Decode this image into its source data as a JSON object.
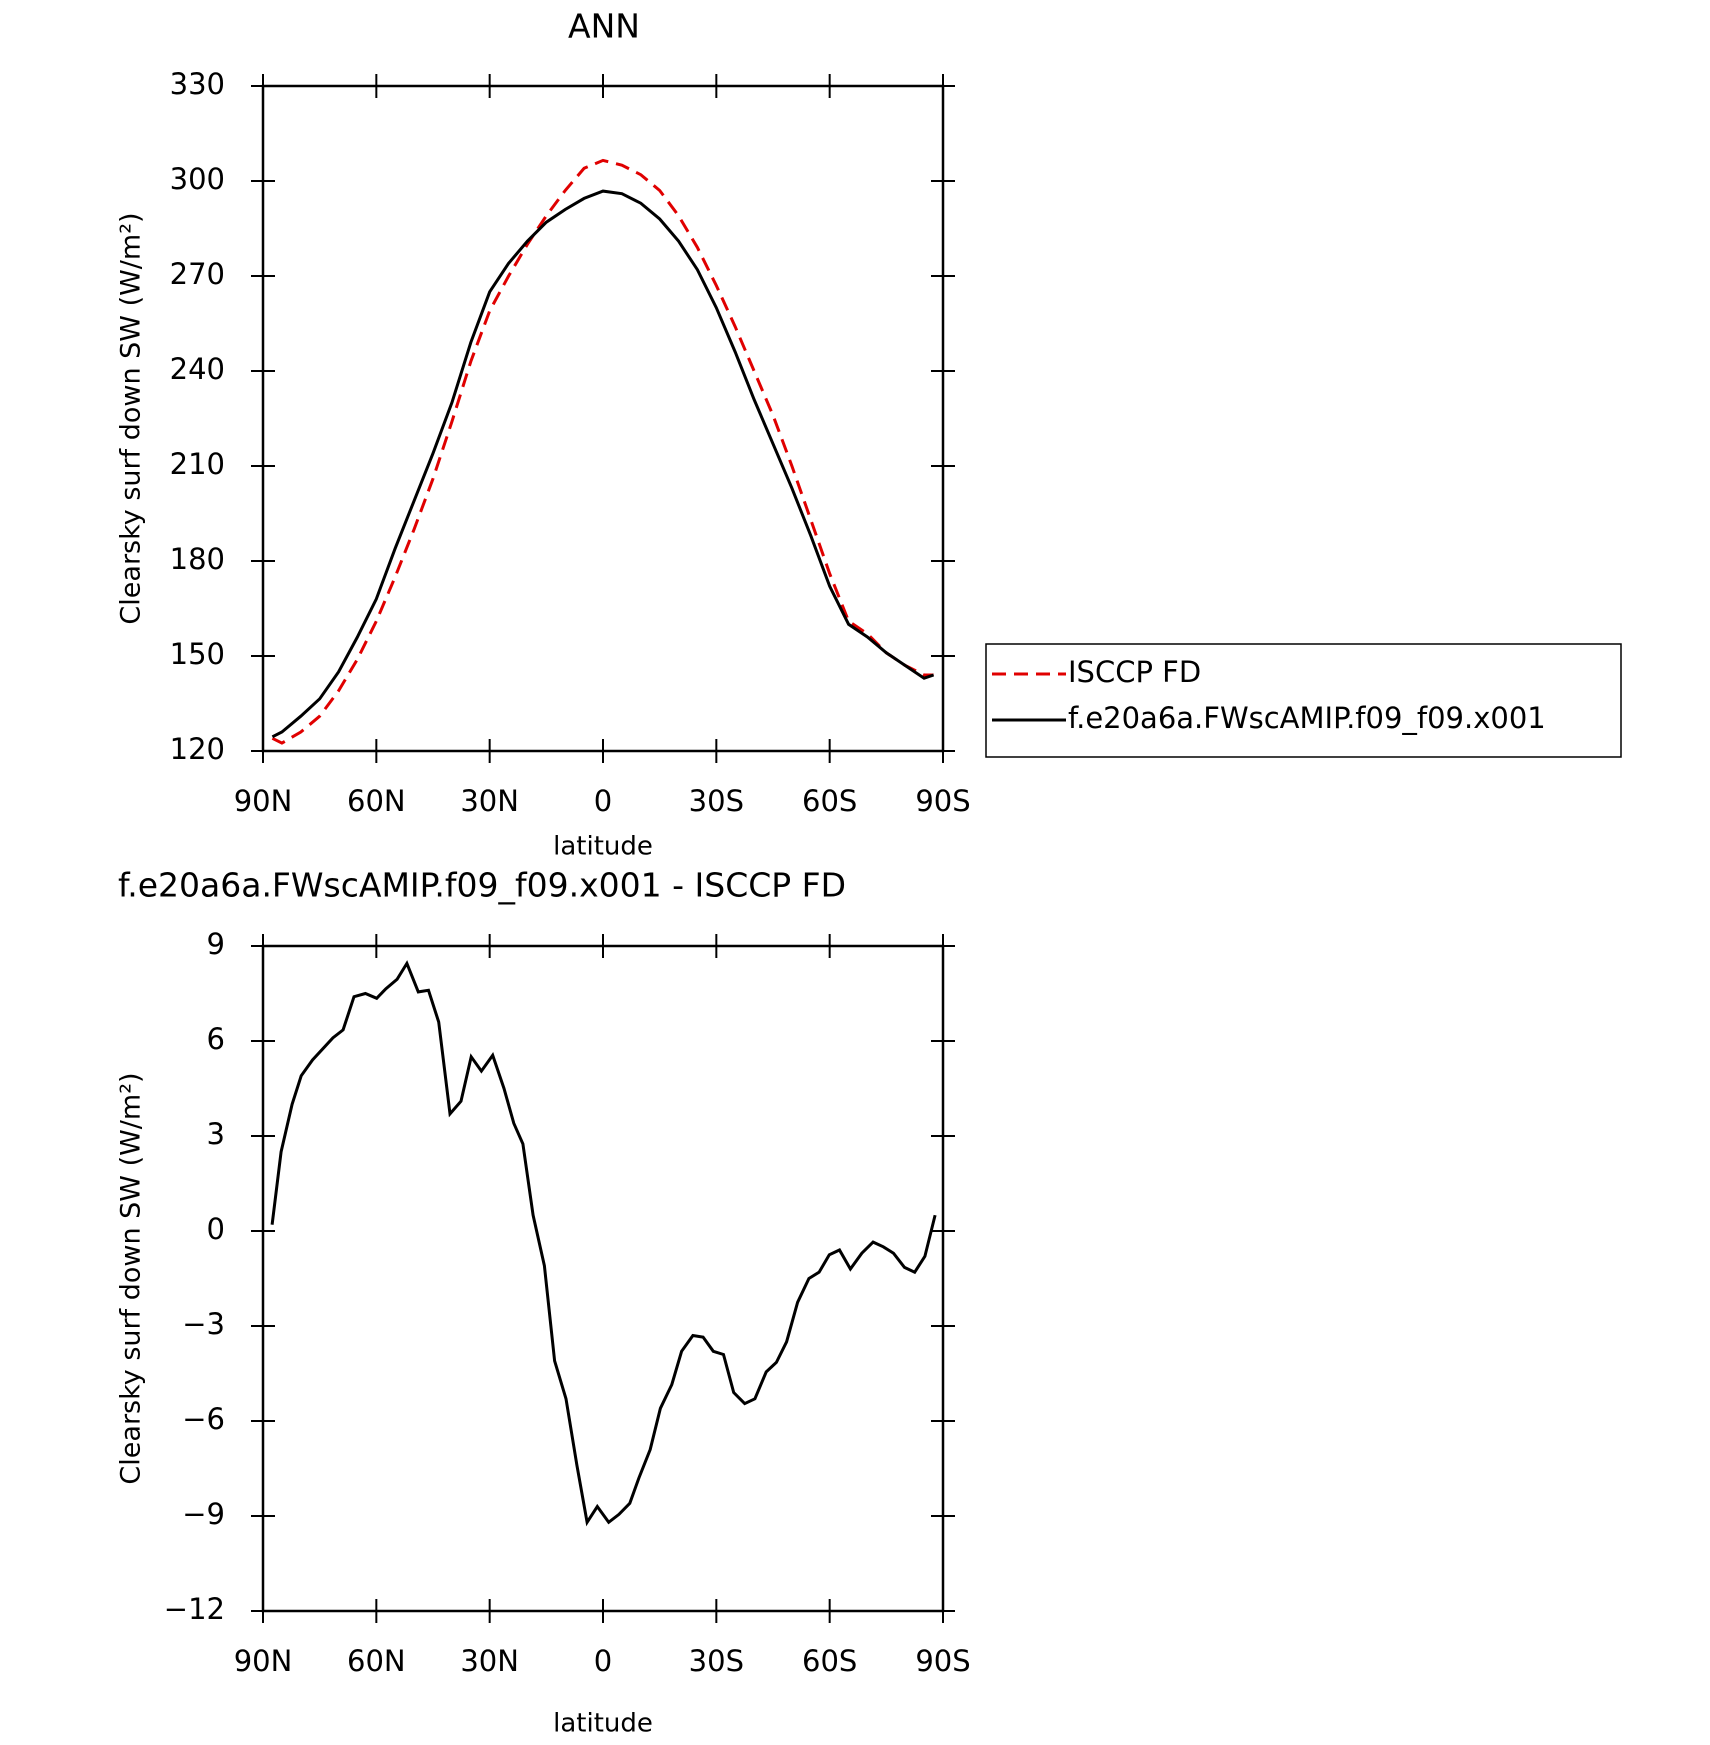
{
  "chart_data": [
    {
      "type": "line",
      "title": "ANN",
      "x_label": "latitude",
      "y_label": "Clearsky surf down SW (W/m²)",
      "x": [
        87.5,
        85,
        80,
        75,
        70,
        65,
        60,
        55,
        50,
        45,
        40,
        35,
        30,
        25,
        20,
        15,
        10,
        5,
        0,
        -5,
        -10,
        -15,
        -20,
        -25,
        -30,
        -35,
        -40,
        -45,
        -50,
        -55,
        -60,
        -65,
        -70,
        -75,
        -80,
        -85,
        -87.5
      ],
      "series": [
        {
          "name": "ISCCP FD",
          "color": "#e00000",
          "dashed": true,
          "values": [
            124,
            122.5,
            126,
            131,
            139,
            149,
            161,
            175,
            190,
            206,
            224,
            243,
            259,
            270,
            280,
            289,
            297,
            304,
            306.5,
            305,
            302,
            297,
            289,
            279,
            267,
            254,
            240,
            226,
            210,
            193,
            176,
            161,
            157,
            151,
            147,
            144,
            144
          ]
        },
        {
          "name": "f.e20a6a.FWscAMIP.f09_f09.x001",
          "color": "#000000",
          "dashed": false,
          "values": [
            124.5,
            126,
            131,
            136.5,
            145,
            156,
            168,
            184,
            199,
            214,
            230,
            249,
            265,
            274,
            281,
            287,
            291,
            294.5,
            296.8,
            296,
            293,
            288,
            281,
            272,
            260,
            246,
            231,
            217,
            203,
            188,
            172,
            160,
            156,
            151,
            147,
            143,
            144
          ]
        }
      ],
      "xlim": [
        90,
        -90
      ],
      "xticks": [
        {
          "value": 90,
          "label": "90N"
        },
        {
          "value": 60,
          "label": "60N"
        },
        {
          "value": 30,
          "label": "30N"
        },
        0,
        {
          "value": -30,
          "label": "30S"
        },
        {
          "value": -60,
          "label": "60S"
        },
        {
          "value": -90,
          "label": "90S"
        }
      ],
      "ylim": [
        120,
        330
      ],
      "yticks": [
        120,
        150,
        180,
        210,
        240,
        270,
        300,
        330
      ],
      "legend": "right"
    },
    {
      "type": "line",
      "title": "f.e20a6a.FWscAMIP.f09_f09.x001 - ISCCP FD",
      "x_label": "latitude",
      "y_label": "Clearsky surf down SW (W/m²)",
      "x": [
        87.6,
        85.2,
        82.3,
        79.9,
        76.9,
        71.5,
        68.8,
        65.9,
        62.9,
        59.9,
        57.5,
        54.5,
        51.9,
        48.9,
        46.2,
        43.5,
        40.5,
        37.6,
        34.9,
        32.2,
        29.2,
        26.2,
        23.6,
        21.2,
        18.5,
        15.5,
        12.8,
        9.8,
        6.9,
        4.2,
        1.5,
        -1.5,
        -4.2,
        -7.1,
        -9.5,
        -12.5,
        -15.2,
        -18.2,
        -20.8,
        -23.8,
        -26.5,
        -29.2,
        -31.9,
        -34.6,
        -37.5,
        -40.2,
        -43.2,
        -45.9,
        -48.6,
        -51.5,
        -54.5,
        -57.2,
        -59.9,
        -62.6,
        -65.5,
        -68.5,
        -71.5,
        -74.2,
        -76.9,
        -79.8,
        -82.5,
        -85.2,
        -87.9
      ],
      "values": [
        0.2,
        2.5,
        4.0,
        4.9,
        5.4,
        6.1,
        6.35,
        7.4,
        7.5,
        7.35,
        7.65,
        7.95,
        8.45,
        7.55,
        7.6,
        6.6,
        3.7,
        4.1,
        5.5,
        5.05,
        5.55,
        4.5,
        3.4,
        2.75,
        0.5,
        -1.1,
        -4.1,
        -5.3,
        -7.4,
        -9.2,
        -8.7,
        -9.2,
        -8.95,
        -8.6,
        -7.8,
        -6.9,
        -5.6,
        -4.85,
        -3.8,
        -3.3,
        -3.35,
        -3.8,
        -3.9,
        -5.1,
        -5.45,
        -5.3,
        -4.45,
        -4.15,
        -3.5,
        -2.25,
        -1.5,
        -1.3,
        -0.75,
        -0.6,
        -1.2,
        -0.7,
        -0.35,
        -0.5,
        -0.7,
        -1.15,
        -1.3,
        -0.8,
        0.5
      ],
      "color": "#000000",
      "xlim": [
        90,
        -90
      ],
      "xticks": [
        {
          "value": 90,
          "label": "90N"
        },
        {
          "value": 60,
          "label": "60N"
        },
        {
          "value": 30,
          "label": "30N"
        },
        0,
        {
          "value": -30,
          "label": "30S"
        },
        {
          "value": -60,
          "label": "60S"
        },
        {
          "value": -90,
          "label": "90S"
        }
      ],
      "ylim": [
        -12,
        9
      ],
      "yticks": [
        {
          "value": -12,
          "label": "−12"
        },
        {
          "value": -9,
          "label": "−9"
        },
        {
          "value": -6,
          "label": "−6"
        },
        {
          "value": -3,
          "label": "−3"
        },
        0,
        3,
        6,
        9
      ]
    }
  ]
}
